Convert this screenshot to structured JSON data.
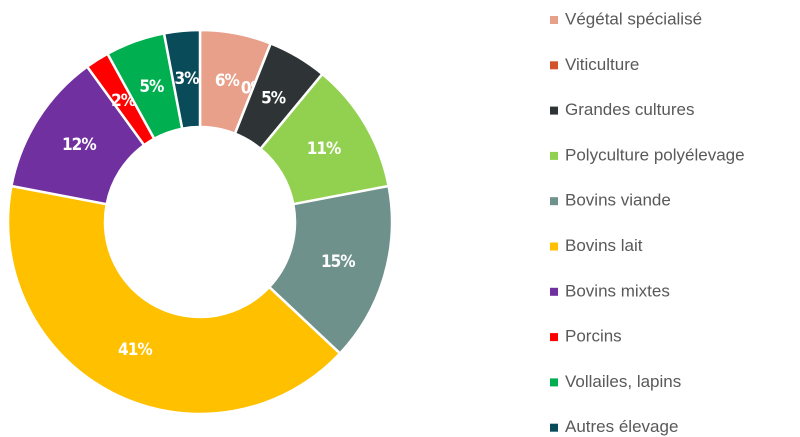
{
  "chart_data": {
    "type": "donut",
    "categories": [
      "Végétal spécialisé",
      "Viticulture",
      "Grandes cultures",
      "Polyculture polyélevage",
      "Bovins viande",
      "Bovins lait",
      "Bovins mixtes",
      "Porcins",
      "Vollailes, lapins",
      "Autres élevage"
    ],
    "values": [
      6,
      0,
      5,
      11,
      15,
      41,
      12,
      2,
      5,
      3
    ],
    "value_labels": [
      "6%",
      "0%",
      "5%",
      "11%",
      "15%",
      "41%",
      "12%",
      "2%",
      "5%",
      "3%"
    ],
    "colors": [
      "#e8a08a",
      "#d2522a",
      "#2e3436",
      "#92d050",
      "#6f918b",
      "#ffc000",
      "#7030a0",
      "#ff0000",
      "#00b050",
      "#0a4b5a"
    ],
    "legend": "right"
  }
}
